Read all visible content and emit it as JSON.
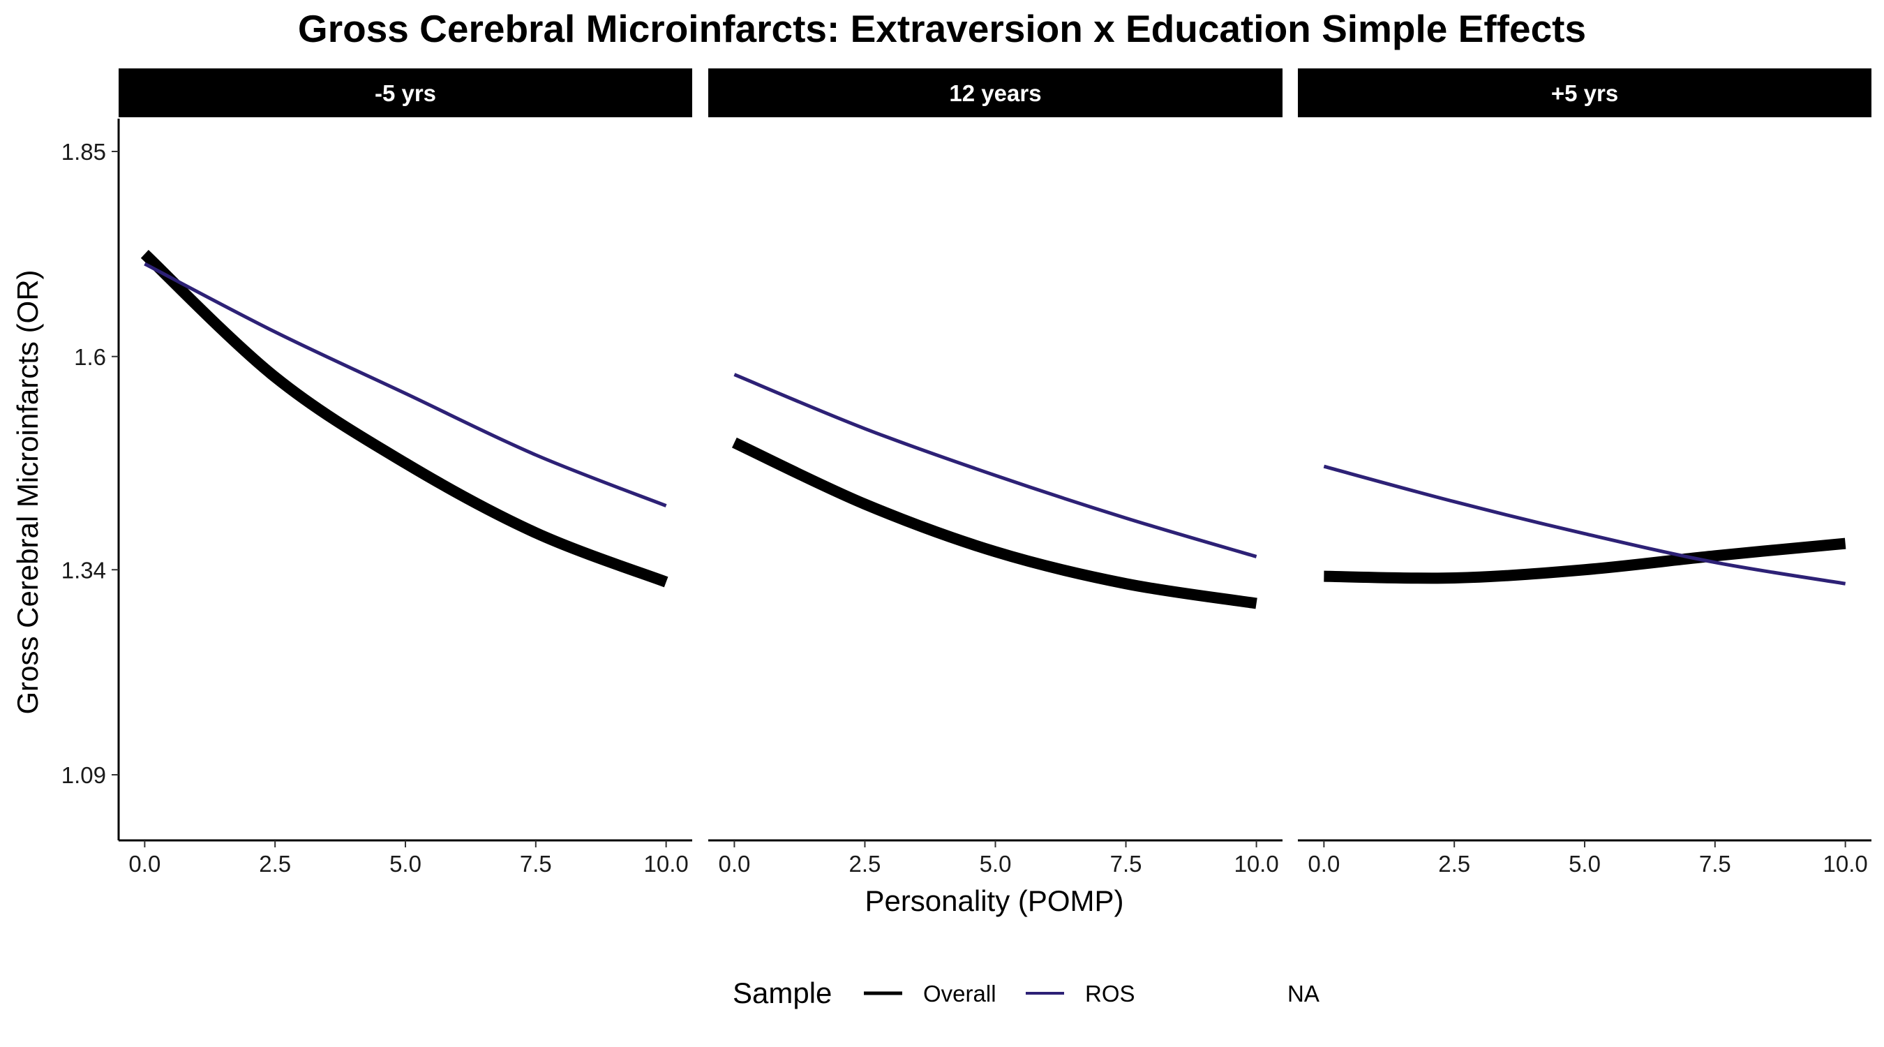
{
  "chart_data": {
    "type": "line",
    "title": "Gross Cerebral Microinfarcts: Extraversion x Education Simple Effects",
    "xlabel": "Personality (POMP)",
    "ylabel": "Gross Cerebral Microinfarcts (OR)",
    "xlim": [
      -0.5,
      10.5
    ],
    "ylim": [
      1.01,
      1.89
    ],
    "x_ticks": [
      0,
      2.5,
      5,
      7.5,
      10
    ],
    "x_tick_labels": [
      "0.0",
      "2.5",
      "5.0",
      "7.5",
      "10.0"
    ],
    "y_ticks": [
      1.09,
      1.34,
      1.6,
      1.85
    ],
    "y_tick_labels": [
      "1.09",
      "1.34",
      "1.6",
      "1.85"
    ],
    "grid": false,
    "legend": {
      "title": "Sample",
      "position": "bottom",
      "entries": [
        {
          "label": "Overall",
          "color": "#000000"
        },
        {
          "label": "ROS",
          "color": "#2d2176"
        },
        {
          "label": "NA",
          "color": null
        }
      ]
    },
    "x": [
      0,
      2.5,
      5,
      7.5,
      10
    ],
    "panels": [
      {
        "label": "-5 yrs",
        "series": [
          {
            "name": "Overall",
            "color": "#000000",
            "values": [
              1.725,
              1.575,
              1.47,
              1.385,
              1.325
            ]
          },
          {
            "name": "ROS",
            "color": "#2d2176",
            "values": [
              1.713,
              1.63,
              1.555,
              1.48,
              1.418
            ]
          }
        ]
      },
      {
        "label": "12 years",
        "series": [
          {
            "name": "Overall",
            "color": "#000000",
            "values": [
              1.495,
              1.42,
              1.362,
              1.323,
              1.299
            ]
          },
          {
            "name": "ROS",
            "color": "#2d2176",
            "values": [
              1.578,
              1.512,
              1.455,
              1.403,
              1.356
            ]
          }
        ]
      },
      {
        "label": "+5 yrs",
        "series": [
          {
            "name": "Overall",
            "color": "#000000",
            "values": [
              1.332,
              1.33,
              1.34,
              1.357,
              1.372
            ]
          },
          {
            "name": "ROS",
            "color": "#2d2176",
            "values": [
              1.466,
              1.423,
              1.384,
              1.349,
              1.323
            ]
          }
        ]
      }
    ]
  }
}
